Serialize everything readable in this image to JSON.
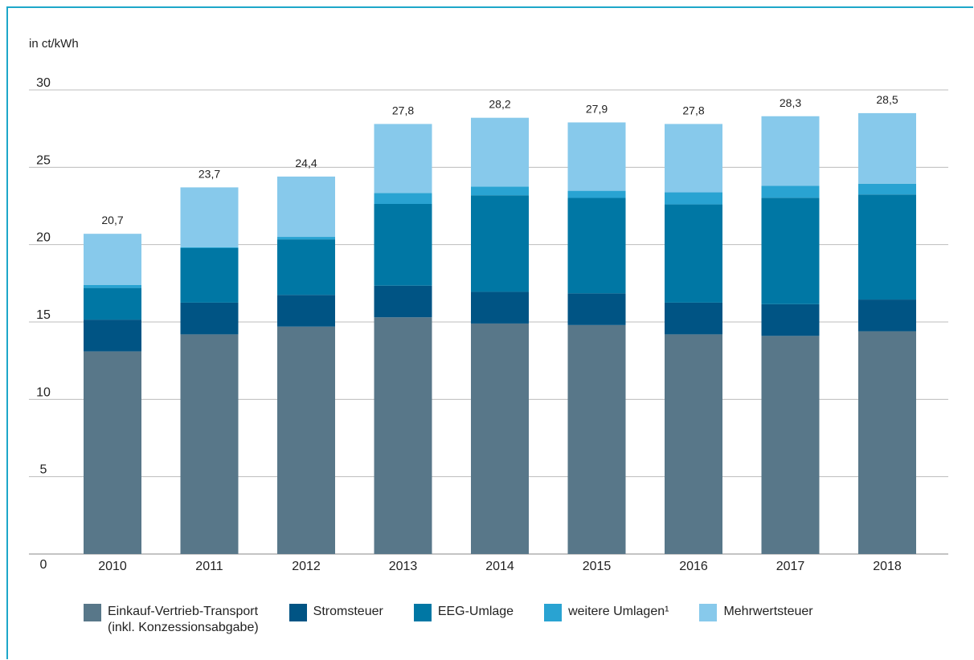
{
  "unit_label": "in ct/kWh",
  "chart_data": {
    "type": "bar",
    "stacked": true,
    "categories": [
      "2010",
      "2011",
      "2012",
      "2013",
      "2014",
      "2015",
      "2016",
      "2017",
      "2018"
    ],
    "series": [
      {
        "name": "Einkauf-Vertrieb-Transport (inkl. Konzessionsabgabe)",
        "color": "#587789",
        "values": [
          13.1,
          14.2,
          14.7,
          15.3,
          14.9,
          14.8,
          14.2,
          14.1,
          14.4
        ]
      },
      {
        "name": "Stromsteuer",
        "color": "#005484",
        "values": [
          2.05,
          2.05,
          2.05,
          2.05,
          2.05,
          2.05,
          2.05,
          2.05,
          2.05
        ]
      },
      {
        "name": "EEG-Umlage",
        "color": "#0077a4",
        "values": [
          2.05,
          3.53,
          3.59,
          5.28,
          6.24,
          6.17,
          6.35,
          6.88,
          6.79
        ]
      },
      {
        "name": "weitere Umlagen¹",
        "color": "#29a3d2",
        "values": [
          0.2,
          0.06,
          0.16,
          0.71,
          0.56,
          0.46,
          0.78,
          0.77,
          0.7
        ]
      },
      {
        "name": "Mehrwertsteuer",
        "color": "#87c9eb",
        "values": [
          3.3,
          3.86,
          3.9,
          4.46,
          4.45,
          4.42,
          4.42,
          4.5,
          4.56
        ]
      }
    ],
    "totals": [
      "20,7",
      "23,7",
      "24,4",
      "27,8",
      "28,2",
      "27,9",
      "27,8",
      "28,3",
      "28,5"
    ],
    "yticks": [
      "0",
      "5",
      "10",
      "15",
      "20",
      "25",
      "30"
    ],
    "ylim": [
      0,
      30
    ],
    "grid": true,
    "legend": {
      "placement": "bottom",
      "items": [
        {
          "label": "Einkauf-Vertrieb-Transport",
          "sub": "(inkl. Konzessionsabgabe)",
          "color": "#587789"
        },
        {
          "label": "Stromsteuer",
          "sub": "",
          "color": "#005484"
        },
        {
          "label": "EEG-Umlage",
          "sub": "",
          "color": "#0077a4"
        },
        {
          "label": "weitere Umlagen¹",
          "sub": "",
          "color": "#29a3d2"
        },
        {
          "label": "Mehrwertsteuer",
          "sub": "",
          "color": "#87c9eb"
        }
      ]
    }
  }
}
